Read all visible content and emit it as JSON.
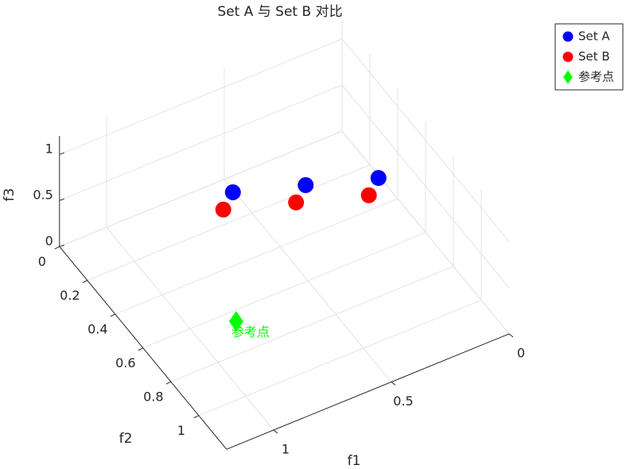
{
  "chart_data": {
    "type": "scatter3d",
    "title": "Set A 与 Set B 对比",
    "xlabel": "f1",
    "ylabel": "f2",
    "zlabel": "f3",
    "xlim": [
      0,
      1.2
    ],
    "ylim": [
      0,
      1.2
    ],
    "zlim": [
      0,
      1.2
    ],
    "xticks": [
      0,
      0.5,
      1
    ],
    "yticks": [
      0,
      0.2,
      0.4,
      0.6,
      0.8,
      1
    ],
    "zticks": [
      0,
      0.5,
      1
    ],
    "grid": true,
    "legend": "outside-top-right",
    "series": [
      {
        "name": "Set A",
        "color": "#0000ff",
        "marker": "circle",
        "x": [
          0.7,
          0.45,
          0.2
        ],
        "y": [
          0.4,
          0.5,
          0.6
        ],
        "z": [
          0.8,
          0.8,
          0.8
        ]
      },
      {
        "name": "Set B",
        "color": "#ff0000",
        "marker": "circle",
        "x": [
          0.8,
          0.55,
          0.3
        ],
        "y": [
          0.5,
          0.6,
          0.7
        ],
        "z": [
          0.9,
          0.9,
          0.9
        ]
      },
      {
        "name": "参考点",
        "color": "#00ff00",
        "marker": "diamond",
        "x": [
          1.1
        ],
        "y": [
          1.1
        ],
        "z": [
          1.1
        ]
      }
    ]
  }
}
